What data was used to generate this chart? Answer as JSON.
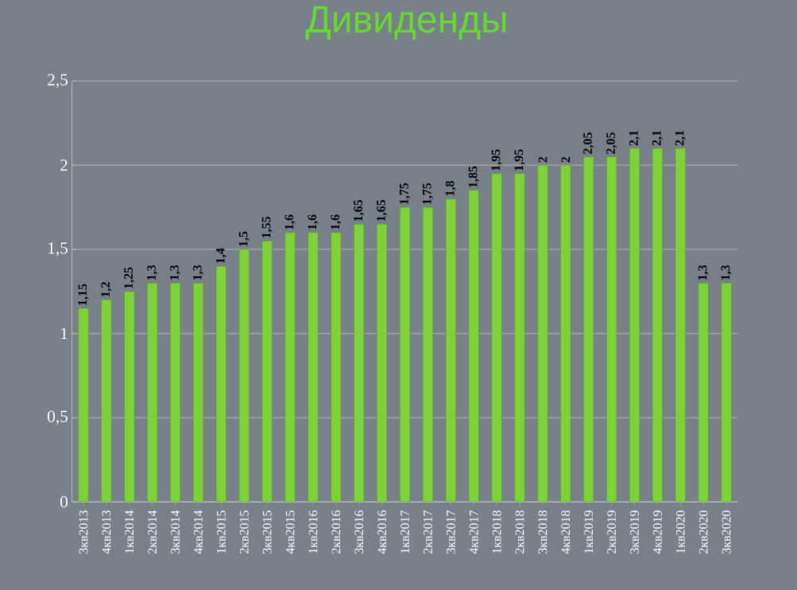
{
  "chart_data": {
    "type": "bar",
    "title": "Дивиденды",
    "categories": [
      "3кв2013",
      "4кв2013",
      "1кв2014",
      "2кв2014",
      "3кв2014",
      "4кв2014",
      "1кв2015",
      "2кв2015",
      "3кв2015",
      "4кв2015",
      "1кв2016",
      "2кв2016",
      "3кв2016",
      "4кв2016",
      "1кв2017",
      "2кв2017",
      "3кв2017",
      "4кв2017",
      "1кв2018",
      "2кв2018",
      "3кв2018",
      "4кв2018",
      "1кв2019",
      "2кв2019",
      "3кв2019",
      "4кв2019",
      "1кв2020",
      "2кв2020",
      "3кв2020"
    ],
    "values": [
      1.15,
      1.2,
      1.25,
      1.3,
      1.3,
      1.3,
      1.4,
      1.5,
      1.55,
      1.6,
      1.6,
      1.6,
      1.65,
      1.65,
      1.75,
      1.75,
      1.8,
      1.85,
      1.95,
      1.95,
      2,
      2,
      2.05,
      2.05,
      2.1,
      2.1,
      2.1,
      1.3,
      1.3
    ],
    "value_labels": [
      "1,15",
      "1,2",
      "1,25",
      "1,3",
      "1,3",
      "1,3",
      "1,4",
      "1,5",
      "1,55",
      "1,6",
      "1,6",
      "1,6",
      "1,65",
      "1,65",
      "1,75",
      "1,75",
      "1,8",
      "1,85",
      "1,95",
      "1,95",
      "2",
      "2",
      "2,05",
      "2,05",
      "2,1",
      "2,1",
      "2,1",
      "1,3",
      "1,3"
    ],
    "color": "#7fd13b",
    "ylim": [
      0,
      2.5
    ],
    "yticks": [
      0,
      {
        "value": 0.5,
        "label": "0,5"
      },
      1,
      {
        "value": 1.5,
        "label": "1,5"
      },
      2,
      {
        "value": 2.5,
        "label": "2,5"
      }
    ],
    "grid": "y"
  }
}
